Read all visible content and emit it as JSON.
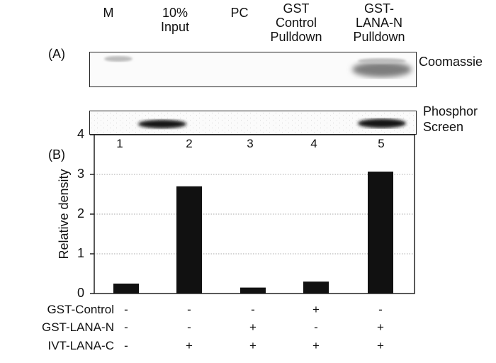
{
  "lanes": {
    "headers": [
      "M",
      "10%\nInput",
      "PC",
      "GST\nControl\nPulldown",
      "GST-\nLANA-N\nPulldown"
    ],
    "numbers": [
      "1",
      "2",
      "3",
      "4",
      "5"
    ]
  },
  "panels": {
    "a_label": "(A)",
    "b_label": "(B)"
  },
  "blots": {
    "top_label": "Coomassie",
    "bottom_label": "Phosphor\nScreen"
  },
  "chart_data": {
    "type": "bar",
    "categories": [
      "1",
      "2",
      "3",
      "4",
      "5"
    ],
    "values": [
      0.25,
      2.7,
      0.15,
      0.3,
      3.07
    ],
    "ylabel": "Relative density",
    "ylim": [
      0,
      4
    ],
    "yticks": [
      "0",
      "1",
      "2",
      "3",
      "4"
    ],
    "grid": true,
    "bar_color": "#111111"
  },
  "conditions": [
    {
      "label": "GST-Control",
      "signs": [
        "-",
        "-",
        "-",
        "+",
        "-"
      ]
    },
    {
      "label": "GST-LANA-N",
      "signs": [
        "-",
        "-",
        "+",
        "-",
        "+"
      ]
    },
    {
      "label": "IVT-LANA-C",
      "signs": [
        "-",
        "+",
        "+",
        "+",
        "+"
      ]
    }
  ]
}
